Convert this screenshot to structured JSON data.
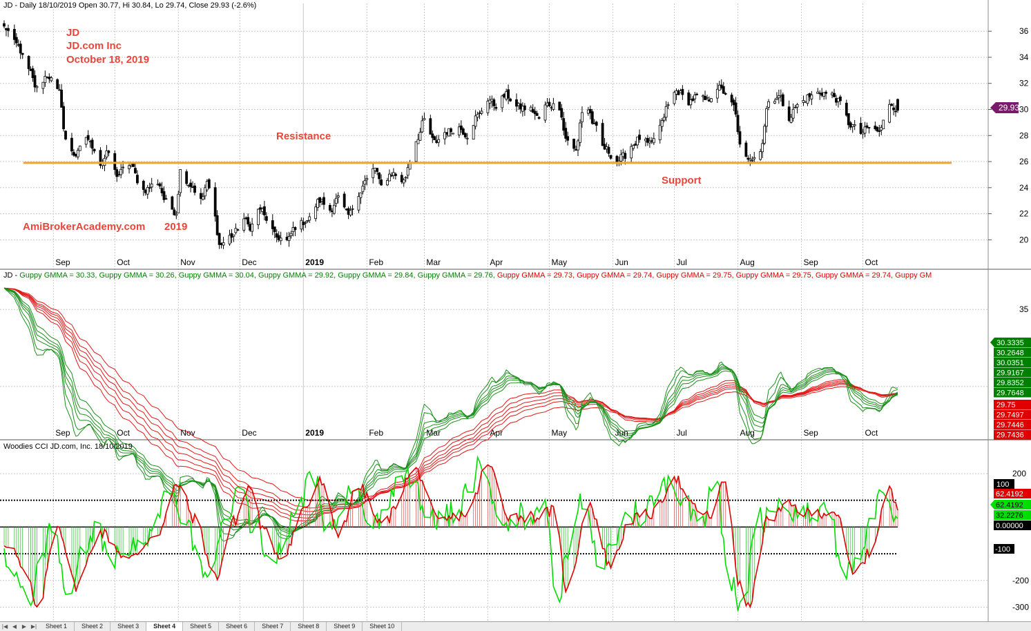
{
  "colors": {
    "background": "#ffffff",
    "candle": "#000000",
    "support_line": "#f2a33a",
    "annotation": "#e8463c",
    "title_green": "#008000",
    "title_red": "#e00000",
    "gmma_short": "#1a8f1a",
    "gmma_long": "#e01818",
    "cci_fast": "#00dd00",
    "cci_slow": "#e00000",
    "price_badge": "#7a1a6a",
    "grid": "#c8c8c8"
  },
  "price_panel": {
    "header": "JD - Daily 18/10/2019 Open 30.77, Hi 30.84, Lo 29.74, Close 29.93 (-2.6%)",
    "annotations": {
      "symbol": "JD",
      "company": "JD.com Inc",
      "date": "October 18, 2019",
      "resistance": "Resistance",
      "support": "Support",
      "watermark": "AmiBrokerAcademy.com",
      "year": "2019"
    },
    "price_badge": "29.93",
    "y_ticks": [
      "36",
      "34",
      "32",
      "30",
      "28",
      "26",
      "24",
      "22",
      "20"
    ]
  },
  "x_axis_months": [
    "Sep",
    "Oct",
    "Nov",
    "Dec",
    "2019",
    "Feb",
    "Mar",
    "Apr",
    "May",
    "Jun",
    "Jul",
    "Aug",
    "Sep",
    "Oct"
  ],
  "gmma_panel": {
    "header_prefix": "JD - ",
    "header_items": [
      {
        "text": "Guppy GMMA = 30.33, ",
        "color": "#008000"
      },
      {
        "text": "Guppy GMMA = 30.26, ",
        "color": "#008000"
      },
      {
        "text": "Guppy GMMA = 30.04, ",
        "color": "#008000"
      },
      {
        "text": "Guppy GMMA = 29.92, ",
        "color": "#008000"
      },
      {
        "text": "Guppy GMMA = 29.84, ",
        "color": "#008000"
      },
      {
        "text": "Guppy GMMA = 29.76, ",
        "color": "#008000"
      },
      {
        "text": "Guppy GMMA = 29.73, ",
        "color": "#e00000"
      },
      {
        "text": "Guppy GMMA = 29.74, ",
        "color": "#e00000"
      },
      {
        "text": "Guppy GMMA = 29.75, ",
        "color": "#e00000"
      },
      {
        "text": "Guppy GMMA = 29.75, ",
        "color": "#e00000"
      },
      {
        "text": "Guppy GMMA = 29.74, ",
        "color": "#e00000"
      },
      {
        "text": "Guppy GM",
        "color": "#e00000"
      }
    ],
    "y_ticks": [
      "35"
    ],
    "green_badges": [
      "30.3335",
      "30.2648",
      "30.0351",
      "29.9167",
      "29.8352",
      "29.7648"
    ],
    "red_badges": [
      "29.75",
      "29.7497",
      "29.7446",
      "29.7436"
    ]
  },
  "cci_panel": {
    "header": "Woodies CCI  JD.com, Inc. 18/10/2019",
    "y_ticks": [
      "200",
      "0",
      "-200",
      "-300"
    ],
    "badges": {
      "level_100": "100",
      "slow": "62.4192",
      "fast": "62.4192",
      "fast2": "32.2276",
      "zero": "0.00000",
      "level_minus_100": "-100"
    }
  },
  "sheet_tabs": [
    "Sheet 1",
    "Sheet 2",
    "Sheet 3",
    "Sheet 4",
    "Sheet 5",
    "Sheet 6",
    "Sheet 7",
    "Sheet 8",
    "Sheet 9",
    "Sheet 10"
  ],
  "chart_data": [
    {
      "type": "candlestick",
      "title": "JD - Daily 18/10/2019 Open 30.77, Hi 30.84, Lo 29.74, Close 29.93 (-2.6%)",
      "ylim": [
        18.8,
        37.6
      ],
      "x_range": [
        "2018-08-08",
        "2019-11-12"
      ],
      "last_bar": {
        "date": "2019-10-18",
        "open": 30.77,
        "high": 30.84,
        "low": 29.74,
        "close": 29.93
      },
      "support_resistance_level": 25.9,
      "close_path": [
        {
          "date": "2018-08-08",
          "close": 36.3
        },
        {
          "date": "2018-08-14",
          "close": 35.0
        },
        {
          "date": "2018-08-20",
          "close": 33.0
        },
        {
          "date": "2018-08-24",
          "close": 31.6
        },
        {
          "date": "2018-08-29",
          "close": 32.6
        },
        {
          "date": "2018-09-04",
          "close": 31.3
        },
        {
          "date": "2018-09-07",
          "close": 27.6
        },
        {
          "date": "2018-09-12",
          "close": 26.5
        },
        {
          "date": "2018-09-17",
          "close": 27.9
        },
        {
          "date": "2018-09-20",
          "close": 27.2
        },
        {
          "date": "2018-09-24",
          "close": 25.8
        },
        {
          "date": "2018-09-28",
          "close": 26.7
        },
        {
          "date": "2018-10-02",
          "close": 25.0
        },
        {
          "date": "2018-10-08",
          "close": 25.8
        },
        {
          "date": "2018-10-15",
          "close": 23.8
        },
        {
          "date": "2018-10-22",
          "close": 24.4
        },
        {
          "date": "2018-10-26",
          "close": 22.9
        },
        {
          "date": "2018-10-31",
          "close": 22.1
        },
        {
          "date": "2018-11-02",
          "close": 25.3
        },
        {
          "date": "2018-11-07",
          "close": 24.2
        },
        {
          "date": "2018-11-12",
          "close": 23.0
        },
        {
          "date": "2018-11-15",
          "close": 24.3
        },
        {
          "date": "2018-11-19",
          "close": 21.7
        },
        {
          "date": "2018-11-21",
          "close": 19.6
        },
        {
          "date": "2018-11-27",
          "close": 20.3
        },
        {
          "date": "2018-12-03",
          "close": 21.6
        },
        {
          "date": "2018-12-06",
          "close": 21.0
        },
        {
          "date": "2018-12-11",
          "close": 22.4
        },
        {
          "date": "2018-12-14",
          "close": 21.6
        },
        {
          "date": "2018-12-19",
          "close": 20.2
        },
        {
          "date": "2018-12-24",
          "close": 19.9
        },
        {
          "date": "2018-12-28",
          "close": 21.0
        },
        {
          "date": "2019-01-03",
          "close": 21.5
        },
        {
          "date": "2019-01-09",
          "close": 23.0
        },
        {
          "date": "2019-01-14",
          "close": 22.3
        },
        {
          "date": "2019-01-18",
          "close": 23.2
        },
        {
          "date": "2019-01-23",
          "close": 21.9
        },
        {
          "date": "2019-01-28",
          "close": 23.6
        },
        {
          "date": "2019-02-01",
          "close": 24.6
        },
        {
          "date": "2019-02-05",
          "close": 25.5
        },
        {
          "date": "2019-02-08",
          "close": 24.1
        },
        {
          "date": "2019-02-13",
          "close": 25.1
        },
        {
          "date": "2019-02-19",
          "close": 24.5
        },
        {
          "date": "2019-02-22",
          "close": 26.0
        },
        {
          "date": "2019-02-26",
          "close": 27.9
        },
        {
          "date": "2019-03-01",
          "close": 29.2
        },
        {
          "date": "2019-03-06",
          "close": 27.5
        },
        {
          "date": "2019-03-12",
          "close": 28.3
        },
        {
          "date": "2019-03-18",
          "close": 28.6
        },
        {
          "date": "2019-03-22",
          "close": 28.0
        },
        {
          "date": "2019-03-27",
          "close": 29.5
        },
        {
          "date": "2019-04-01",
          "close": 30.8
        },
        {
          "date": "2019-04-05",
          "close": 30.3
        },
        {
          "date": "2019-04-10",
          "close": 31.1
        },
        {
          "date": "2019-04-15",
          "close": 30.2
        },
        {
          "date": "2019-04-22",
          "close": 30.0
        },
        {
          "date": "2019-04-26",
          "close": 29.3
        },
        {
          "date": "2019-04-30",
          "close": 30.4
        },
        {
          "date": "2019-05-06",
          "close": 30.2
        },
        {
          "date": "2019-05-09",
          "close": 27.8
        },
        {
          "date": "2019-05-14",
          "close": 26.8
        },
        {
          "date": "2019-05-17",
          "close": 29.8
        },
        {
          "date": "2019-05-20",
          "close": 30.0
        },
        {
          "date": "2019-05-23",
          "close": 28.7
        },
        {
          "date": "2019-05-28",
          "close": 27.0
        },
        {
          "date": "2019-06-03",
          "close": 26.0
        },
        {
          "date": "2019-06-06",
          "close": 26.4
        },
        {
          "date": "2019-06-11",
          "close": 27.3
        },
        {
          "date": "2019-06-14",
          "close": 27.8
        },
        {
          "date": "2019-06-19",
          "close": 27.3
        },
        {
          "date": "2019-06-24",
          "close": 28.7
        },
        {
          "date": "2019-06-28",
          "close": 30.3
        },
        {
          "date": "2019-07-02",
          "close": 31.4
        },
        {
          "date": "2019-07-08",
          "close": 30.6
        },
        {
          "date": "2019-07-12",
          "close": 31.0
        },
        {
          "date": "2019-07-17",
          "close": 30.7
        },
        {
          "date": "2019-07-22",
          "close": 31.7
        },
        {
          "date": "2019-07-26",
          "close": 31.3
        },
        {
          "date": "2019-07-30",
          "close": 30.2
        },
        {
          "date": "2019-08-02",
          "close": 27.5
        },
        {
          "date": "2019-08-06",
          "close": 26.0
        },
        {
          "date": "2019-08-12",
          "close": 27.0
        },
        {
          "date": "2019-08-16",
          "close": 30.6
        },
        {
          "date": "2019-08-21",
          "close": 31.0
        },
        {
          "date": "2019-08-26",
          "close": 29.4
        },
        {
          "date": "2019-08-30",
          "close": 30.3
        },
        {
          "date": "2019-09-05",
          "close": 31.0
        },
        {
          "date": "2019-09-10",
          "close": 31.3
        },
        {
          "date": "2019-09-16",
          "close": 31.1
        },
        {
          "date": "2019-09-20",
          "close": 30.5
        },
        {
          "date": "2019-09-25",
          "close": 28.8
        },
        {
          "date": "2019-09-30",
          "close": 28.2
        },
        {
          "date": "2019-10-04",
          "close": 28.6
        },
        {
          "date": "2019-10-09",
          "close": 28.3
        },
        {
          "date": "2019-10-14",
          "close": 30.5
        },
        {
          "date": "2019-10-18",
          "close": 29.93
        }
      ]
    },
    {
      "type": "line",
      "title": "Guppy GMMA",
      "ylim": [
        27.4,
        36.8
      ],
      "short_ema_periods": [
        3,
        5,
        8,
        10,
        12,
        15
      ],
      "long_ema_periods": [
        30,
        35,
        40,
        45,
        50,
        60
      ],
      "last_values_short": [
        30.3335,
        30.2648,
        30.0351,
        29.9167,
        29.8352,
        29.7648
      ],
      "last_values_long": [
        29.75,
        29.7497,
        29.7446,
        29.7436
      ]
    },
    {
      "type": "line",
      "title": "Woodies CCI  JD.com, Inc. 18/10/2019",
      "ylim": [
        -340,
        280
      ],
      "levels": [
        100,
        0,
        -100
      ],
      "series": [
        {
          "name": "CCI fast",
          "last": 32.2276
        },
        {
          "name": "CCI slow",
          "last": 62.4192
        }
      ],
      "path": [
        {
          "date": "2018-08-10",
          "value": -60
        },
        {
          "date": "2018-08-20",
          "value": -200
        },
        {
          "date": "2018-08-24",
          "value": -320
        },
        {
          "date": "2018-09-03",
          "value": 10
        },
        {
          "date": "2018-09-12",
          "value": -220
        },
        {
          "date": "2018-09-24",
          "value": -20
        },
        {
          "date": "2018-10-08",
          "value": -120
        },
        {
          "date": "2018-10-22",
          "value": -20
        },
        {
          "date": "2018-11-01",
          "value": 160
        },
        {
          "date": "2018-11-09",
          "value": 30
        },
        {
          "date": "2018-11-19",
          "value": -190
        },
        {
          "date": "2018-11-28",
          "value": 20
        },
        {
          "date": "2018-12-06",
          "value": 150
        },
        {
          "date": "2018-12-13",
          "value": -20
        },
        {
          "date": "2018-12-21",
          "value": -110
        },
        {
          "date": "2019-01-03",
          "value": 80
        },
        {
          "date": "2019-01-09",
          "value": 170
        },
        {
          "date": "2019-01-18",
          "value": -20
        },
        {
          "date": "2019-01-28",
          "value": 150
        },
        {
          "date": "2019-02-08",
          "value": 10
        },
        {
          "date": "2019-02-25",
          "value": 210
        },
        {
          "date": "2019-03-08",
          "value": 20
        },
        {
          "date": "2019-03-22",
          "value": 50
        },
        {
          "date": "2019-04-01",
          "value": 230
        },
        {
          "date": "2019-04-12",
          "value": 40
        },
        {
          "date": "2019-04-24",
          "value": 40
        },
        {
          "date": "2019-05-03",
          "value": 60
        },
        {
          "date": "2019-05-10",
          "value": -240
        },
        {
          "date": "2019-05-20",
          "value": 90
        },
        {
          "date": "2019-05-31",
          "value": -140
        },
        {
          "date": "2019-06-10",
          "value": 30
        },
        {
          "date": "2019-06-21",
          "value": 50
        },
        {
          "date": "2019-07-01",
          "value": 190
        },
        {
          "date": "2019-07-09",
          "value": 80
        },
        {
          "date": "2019-07-18",
          "value": 40
        },
        {
          "date": "2019-07-26",
          "value": 170
        },
        {
          "date": "2019-08-02",
          "value": -220
        },
        {
          "date": "2019-08-06",
          "value": -300
        },
        {
          "date": "2019-08-16",
          "value": 30
        },
        {
          "date": "2019-08-26",
          "value": 80
        },
        {
          "date": "2019-09-05",
          "value": 50
        },
        {
          "date": "2019-09-17",
          "value": 60
        },
        {
          "date": "2019-09-27",
          "value": -180
        },
        {
          "date": "2019-10-04",
          "value": -100
        },
        {
          "date": "2019-10-14",
          "value": 140
        },
        {
          "date": "2019-10-18",
          "value": 62.4
        }
      ]
    }
  ]
}
